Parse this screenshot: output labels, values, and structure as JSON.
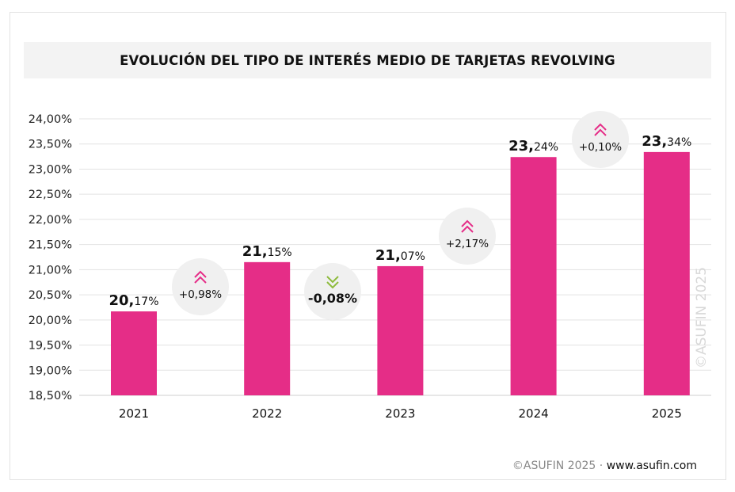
{
  "chart_data": {
    "type": "bar",
    "title": "EVOLUCIÓN DEL TIPO DE INTERÉS MEDIO DE TARJETAS REVOLVING",
    "categories": [
      "2021",
      "2022",
      "2023",
      "2024",
      "2025"
    ],
    "values": [
      20.17,
      21.15,
      21.07,
      23.24,
      23.34
    ],
    "data_labels": [
      "20,17%",
      "21,15%",
      "21,07%",
      "23,24%",
      "23,34%"
    ],
    "changes": [
      {
        "label": "+0,98%",
        "direction": "up"
      },
      {
        "label": "-0,08%",
        "direction": "down"
      },
      {
        "label": "+2,17%",
        "direction": "up"
      },
      {
        "label": "+0,10%",
        "direction": "up"
      }
    ],
    "ylim": [
      18.5,
      24.0
    ],
    "yticks": [
      "18,50%",
      "19,00%",
      "19,50%",
      "20,00%",
      "20,50%",
      "21,00%",
      "21,50%",
      "22,00%",
      "22,50%",
      "23,00%",
      "23,50%",
      "24,00%"
    ],
    "grid": true,
    "xlabel": "",
    "ylabel": "",
    "colors": {
      "bar": "#e52d87",
      "up": "#e52d87",
      "down": "#8dbb3c",
      "bubble": "#f0f0f0",
      "grid": "#e3e3e3"
    },
    "watermark": "©ASUFIN 2025"
  },
  "footer": {
    "copyright": "©ASUFIN 2025 · ",
    "url": "www.asufin.com"
  }
}
